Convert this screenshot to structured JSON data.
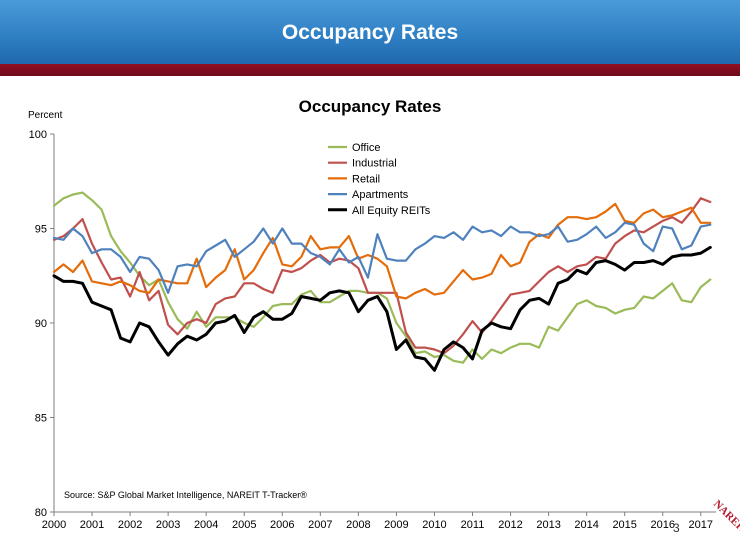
{
  "slide": {
    "header_title": "Occupancy Rates",
    "page_number": "3",
    "logo_text": "NAREIT"
  },
  "colors": {
    "header": "#2f7fc4",
    "band": "#7d0c1d",
    "office": "#9bbb59",
    "industrial": "#c0504d",
    "retail": "#e46c0a",
    "apartments": "#4f81bd",
    "all_equity": "#000000"
  },
  "chart_data": {
    "type": "line",
    "title": "Occupancy Rates",
    "ylabel": "Percent",
    "xlabel": "",
    "source": "Source: S&P Global Market Intelligence, NAREIT T-Tracker®",
    "ylim": [
      80,
      100
    ],
    "xlim": [
      2000,
      2017.4
    ],
    "y_ticks": [
      "80",
      "85",
      "90",
      "95",
      "100"
    ],
    "x_ticks": [
      "2000",
      "2001",
      "2002",
      "2003",
      "2004",
      "2005",
      "2006",
      "2007",
      "2008",
      "2009",
      "2010",
      "2011",
      "2012",
      "2013",
      "2014",
      "2015",
      "2016",
      "2017"
    ],
    "grid": false,
    "legend_position": "top-center",
    "x_start": 2000,
    "x_step": 0.25,
    "series": [
      {
        "name": "Office",
        "color": "#9bbb59",
        "values": [
          96.2,
          96.6,
          96.8,
          96.9,
          96.5,
          96.0,
          94.6,
          93.8,
          93.2,
          92.5,
          92.0,
          92.3,
          91.1,
          90.2,
          89.7,
          90.6,
          89.8,
          90.3,
          90.3,
          90.3,
          90.0,
          89.8,
          90.3,
          90.9,
          91.0,
          91.0,
          91.5,
          91.7,
          91.1,
          91.1,
          91.4,
          91.7,
          91.7,
          91.6,
          91.6,
          91.3,
          90.0,
          89.3,
          88.4,
          88.5,
          88.2,
          88.3,
          88.0,
          87.9,
          88.6,
          88.1,
          88.6,
          88.4,
          88.7,
          88.9,
          88.9,
          88.7,
          89.8,
          89.6,
          90.3,
          91.0,
          91.2,
          90.9,
          90.8,
          90.5,
          90.7,
          90.8,
          91.4,
          91.3,
          91.7,
          92.1,
          91.2,
          91.1,
          91.9,
          92.3
        ]
      },
      {
        "name": "Industrial",
        "color": "#c0504d",
        "values": [
          94.4,
          94.6,
          95.0,
          95.5,
          94.2,
          93.2,
          92.3,
          92.4,
          91.4,
          92.7,
          91.2,
          91.7,
          89.9,
          89.4,
          90.0,
          90.2,
          90.0,
          91.0,
          91.3,
          91.4,
          92.1,
          92.1,
          91.8,
          91.6,
          92.8,
          92.7,
          92.9,
          93.3,
          93.6,
          93.2,
          93.4,
          93.3,
          92.9,
          91.6,
          91.6,
          91.6,
          91.6,
          89.5,
          88.7,
          88.7,
          88.6,
          88.4,
          88.8,
          89.4,
          90.1,
          89.5,
          90.1,
          90.8,
          91.5,
          91.6,
          91.7,
          92.2,
          92.7,
          93.0,
          92.7,
          93.0,
          93.1,
          93.5,
          93.4,
          94.2,
          94.6,
          94.9,
          94.8,
          95.1,
          95.4,
          95.6,
          95.3,
          95.9,
          96.6,
          96.4
        ]
      },
      {
        "name": "Retail",
        "color": "#e46c0a",
        "values": [
          92.7,
          93.1,
          92.7,
          93.3,
          92.2,
          92.1,
          92.0,
          92.2,
          92.0,
          91.7,
          91.6,
          92.3,
          92.2,
          92.1,
          92.1,
          93.4,
          91.9,
          92.4,
          92.8,
          93.9,
          92.3,
          92.8,
          93.7,
          94.5,
          93.1,
          93.0,
          93.5,
          94.6,
          93.9,
          94.0,
          94.0,
          94.6,
          93.4,
          93.6,
          93.4,
          93.0,
          91.4,
          91.3,
          91.6,
          91.8,
          91.5,
          91.6,
          92.2,
          92.8,
          92.3,
          92.4,
          92.6,
          93.6,
          93.0,
          93.2,
          94.3,
          94.7,
          94.5,
          95.2,
          95.6,
          95.6,
          95.5,
          95.6,
          95.9,
          96.3,
          95.4,
          95.3,
          95.8,
          96.0,
          95.6,
          95.7,
          95.9,
          96.1,
          95.3,
          95.3
        ]
      },
      {
        "name": "Apartments",
        "color": "#4f81bd",
        "values": [
          94.5,
          94.4,
          95.0,
          94.6,
          93.7,
          93.9,
          93.9,
          93.5,
          92.7,
          93.5,
          93.4,
          92.8,
          91.6,
          93.0,
          93.1,
          93.0,
          93.8,
          94.1,
          94.4,
          93.5,
          93.9,
          94.3,
          95.0,
          94.2,
          95.0,
          94.2,
          94.2,
          93.7,
          93.5,
          93.1,
          93.9,
          93.2,
          93.5,
          92.4,
          94.7,
          93.4,
          93.3,
          93.3,
          93.9,
          94.2,
          94.6,
          94.5,
          94.8,
          94.4,
          95.1,
          94.8,
          94.9,
          94.6,
          95.1,
          94.8,
          94.8,
          94.6,
          94.7,
          95.1,
          94.3,
          94.4,
          94.7,
          95.1,
          94.5,
          94.8,
          95.3,
          95.2,
          94.2,
          93.8,
          95.1,
          95.0,
          93.9,
          94.1,
          95.1,
          95.2
        ]
      },
      {
        "name": "All Equity REITs",
        "color": "#000000",
        "values": [
          92.5,
          92.2,
          92.2,
          92.1,
          91.1,
          90.9,
          90.7,
          89.2,
          89.0,
          90.0,
          89.8,
          89.0,
          88.3,
          88.9,
          89.3,
          89.1,
          89.4,
          90.0,
          90.1,
          90.4,
          89.5,
          90.3,
          90.6,
          90.2,
          90.2,
          90.5,
          91.4,
          91.3,
          91.2,
          91.6,
          91.7,
          91.6,
          90.6,
          91.2,
          91.4,
          90.6,
          88.6,
          89.1,
          88.2,
          88.1,
          87.5,
          88.6,
          89.0,
          88.7,
          88.1,
          89.6,
          90.0,
          89.8,
          89.7,
          90.7,
          91.2,
          91.3,
          91.0,
          92.1,
          92.3,
          92.8,
          92.6,
          93.2,
          93.3,
          93.1,
          92.8,
          93.2,
          93.2,
          93.3,
          93.1,
          93.5,
          93.6,
          93.6,
          93.7,
          94.0
        ]
      }
    ]
  }
}
